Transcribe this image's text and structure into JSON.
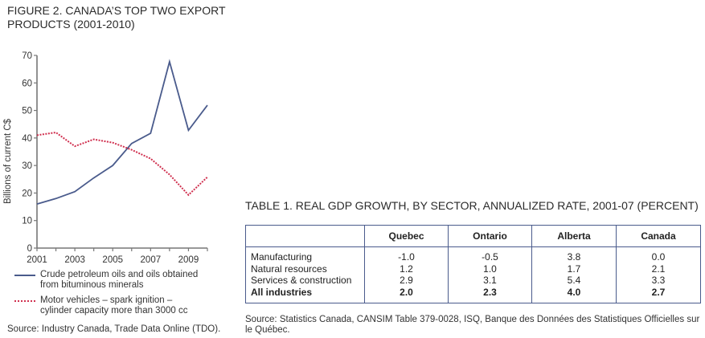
{
  "figure": {
    "title_line1": "FIGURE 2. CANADA’S TOP TWO EXPORT",
    "title_line2": "PRODUCTS (2001-2010)",
    "source": "Source: Industry Canada, Trade Data Online (TDO)."
  },
  "chart_data": {
    "type": "line",
    "title": "FIGURE 2. CANADA’S TOP TWO EXPORT PRODUCTS (2001-2010)",
    "xlabel": "",
    "ylabel": "Billions of current C$",
    "x": [
      2001,
      2002,
      2003,
      2004,
      2005,
      2006,
      2007,
      2008,
      2009,
      2010
    ],
    "xlim": [
      2001,
      2010
    ],
    "ylim": [
      0,
      70
    ],
    "x_tick_labels": [
      "2001",
      "2003",
      "2005",
      "2007",
      "2009"
    ],
    "y_ticks": [
      0,
      10,
      20,
      30,
      40,
      50,
      60,
      70
    ],
    "grid": false,
    "legend_position": "bottom",
    "series": [
      {
        "name": "Crude petroleum oils and oils obtained from bituminous minerals",
        "legend_line1": "Crude petroleum oils and oils obtained",
        "legend_line2": "from bituminous minerals",
        "style": "solid",
        "color": "#4a5b8c",
        "values": [
          16,
          18,
          20.5,
          25.5,
          30,
          38,
          41.7,
          67.7,
          42.8,
          51.9
        ]
      },
      {
        "name": "Motor vehicles – spark ignition – cylinder capacity more than 3000 cc",
        "legend_line1": "Motor vehicles – spark ignition –",
        "legend_line2": "cylinder capacity more than 3000 cc",
        "style": "dotted",
        "color": "#d0304f",
        "values": [
          41,
          42,
          37,
          39.5,
          38.3,
          35.7,
          32.5,
          26.7,
          19.3,
          25.8
        ]
      }
    ]
  },
  "table": {
    "title": "TABLE 1. REAL GDP GROWTH, BY SECTOR, ANNUALIZED RATE, 2001-07 (PERCENT)",
    "columns": [
      "",
      "Quebec",
      "Ontario",
      "Alberta",
      "Canada"
    ],
    "rows": [
      {
        "label": "Manufacturing",
        "values": [
          "-1.0",
          "-0.5",
          "3.8",
          "0.0"
        ],
        "bold": false
      },
      {
        "label": "Natural resources",
        "values": [
          "1.2",
          "1.0",
          "1.7",
          "2.1"
        ],
        "bold": false
      },
      {
        "label": "Services & construction",
        "values": [
          "2.9",
          "3.1",
          "5.4",
          "3.3"
        ],
        "bold": false
      },
      {
        "label": "All industries",
        "values": [
          "2.0",
          "2.3",
          "4.0",
          "2.7"
        ],
        "bold": true
      }
    ],
    "border_color": "#4a5b8c",
    "source_line1": "Source: Statistics Canada, CANSIM Table 379-0028, ISQ, Banque des Données des Statistiques Officielles sur",
    "source_line2": "le Québec."
  }
}
